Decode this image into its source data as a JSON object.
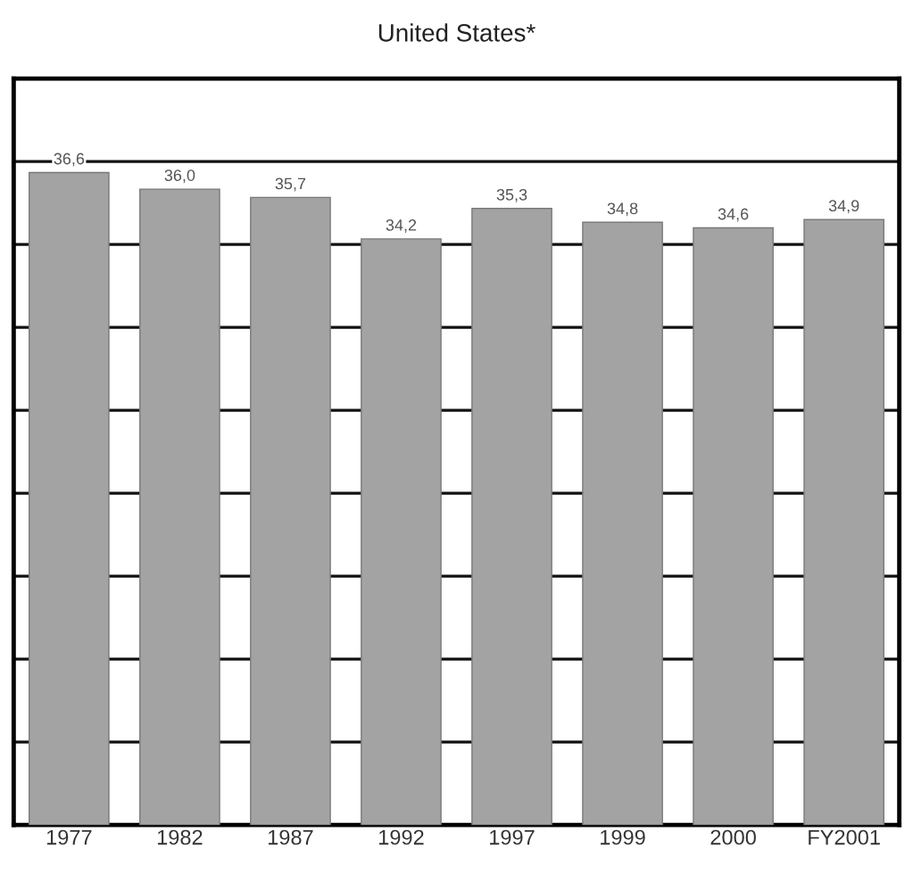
{
  "chart_data": {
    "type": "bar",
    "title": "United States*",
    "categories": [
      "1977",
      "1982",
      "1987",
      "1992",
      "1997",
      "1999",
      "2000",
      "FY2001"
    ],
    "values": [
      36.6,
      36.0,
      35.7,
      34.2,
      35.3,
      34.8,
      34.6,
      34.9
    ],
    "value_labels": [
      "36,6",
      "36,0",
      "35,7",
      "34,2",
      "35,3",
      "34,8",
      "34,6",
      "34,9"
    ],
    "color": "#a3a3a3",
    "ylim": [
      13,
      40
    ],
    "yticks": [
      {
        "value": 13,
        "label": null
      },
      {
        "value": 16,
        "label": null
      },
      {
        "value": 19,
        "label": null
      },
      {
        "value": 22,
        "label": null
      },
      {
        "value": 25,
        "label": null
      },
      {
        "value": 28,
        "label": null
      },
      {
        "value": 31,
        "label": null
      },
      {
        "value": 34,
        "label": null
      },
      {
        "value": 37,
        "label": null
      }
    ],
    "grid": "y",
    "tick_labels": "x"
  }
}
